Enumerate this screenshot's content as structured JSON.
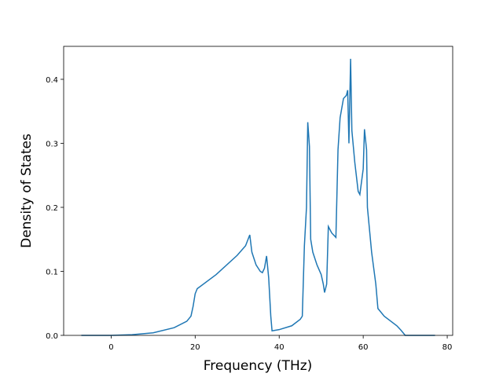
{
  "chart_data": {
    "type": "line",
    "xlabel": "Frequency (THz)",
    "ylabel": "Density of States",
    "x": [
      -7.1,
      0,
      5,
      10,
      15,
      18,
      19,
      19.5,
      20,
      20.5,
      25,
      30,
      32,
      33,
      33.5,
      34.5,
      35.5,
      36,
      36.5,
      37,
      37.5,
      38,
      38.3,
      40,
      43,
      45,
      45.5,
      46,
      46.5,
      46.8,
      47.2,
      47.5,
      48,
      49,
      50,
      50.5,
      50.8,
      51.3,
      51.7,
      52.5,
      53.5,
      54,
      54.5,
      55.3,
      56,
      56.3,
      56.6,
      57,
      57.3,
      58,
      58.8,
      59.2,
      60,
      60.3,
      60.8,
      61,
      62,
      63,
      63.5,
      65,
      68,
      69,
      70,
      77.1
    ],
    "series": [
      {
        "color": "#1f77b4",
        "values": [
          0,
          0,
          0.001,
          0.004,
          0.012,
          0.022,
          0.03,
          0.045,
          0.065,
          0.073,
          0.095,
          0.125,
          0.14,
          0.157,
          0.13,
          0.11,
          0.1,
          0.098,
          0.105,
          0.124,
          0.09,
          0.03,
          0.007,
          0.009,
          0.015,
          0.025,
          0.03,
          0.14,
          0.2,
          0.333,
          0.295,
          0.15,
          0.13,
          0.11,
          0.095,
          0.08,
          0.067,
          0.08,
          0.17,
          0.16,
          0.153,
          0.29,
          0.34,
          0.37,
          0.375,
          0.383,
          0.3,
          0.432,
          0.32,
          0.27,
          0.225,
          0.22,
          0.26,
          0.322,
          0.29,
          0.2,
          0.13,
          0.08,
          0.042,
          0.03,
          0.015,
          0.008,
          0,
          0
        ]
      }
    ],
    "xlim": [
      -11.3,
      81.3
    ],
    "ylim": [
      0,
      0.4515
    ],
    "xticks": [
      0,
      20,
      40,
      60,
      80
    ],
    "yticks": [
      {
        "value": 0,
        "label": "0.0"
      },
      0.1,
      0.2,
      0.3,
      0.4
    ]
  }
}
